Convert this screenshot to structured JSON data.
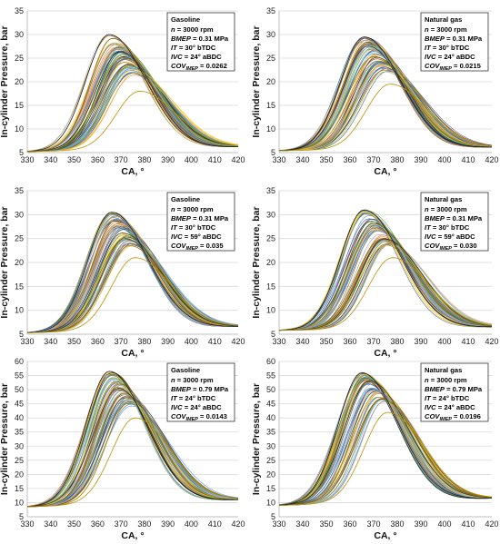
{
  "chart_data": [
    {
      "type": "line",
      "xlabel": "CA, °",
      "ylabel": "In-cylinder Pressure, bar",
      "xlim": [
        330,
        420
      ],
      "ylim": [
        5,
        35
      ],
      "xticks": [
        330,
        340,
        350,
        360,
        370,
        380,
        390,
        400,
        410,
        420
      ],
      "yticks": [
        5,
        10,
        15,
        20,
        25,
        30,
        35
      ],
      "grid": "horizontal",
      "legend": {
        "placement": "top-right",
        "title": "Gasoline",
        "lines": [
          {
            "k": "n",
            "v": " = 3000 rpm"
          },
          {
            "k": "BMEP",
            "v": " = 0.31 MPa"
          },
          {
            "k": "IT",
            "v": " = 30° bTDC"
          },
          {
            "k": "IVC",
            "v": " = 24° aBDC"
          },
          {
            "k": "COV",
            "sub": "IMEP",
            "v": " = 0.0262"
          }
        ]
      },
      "envelope": {
        "start_pressure": 5.2,
        "motored_peak": 18.0,
        "fired_peak_min": 18.0,
        "fired_peak_max": 30.0,
        "peak_ca_min": 365,
        "peak_ca_max": 378,
        "end_pressure": 6.2
      },
      "series_count": 60
    },
    {
      "type": "line",
      "xlabel": "CA, °",
      "ylabel": "In-cylinder Pressure, bar",
      "xlim": [
        330,
        420
      ],
      "ylim": [
        5,
        35
      ],
      "xticks": [
        330,
        340,
        350,
        360,
        370,
        380,
        390,
        400,
        410,
        420
      ],
      "yticks": [
        5,
        10,
        15,
        20,
        25,
        30,
        35
      ],
      "grid": "horizontal",
      "legend": {
        "placement": "top-right",
        "title": "Natural gas",
        "lines": [
          {
            "k": "n",
            "v": " = 3000 rpm"
          },
          {
            "k": "BMEP",
            "v": " = 0.31 MPa"
          },
          {
            "k": "IT",
            "v": " = 30° bTDC"
          },
          {
            "k": "IVC",
            "v": " = 24° aBDC"
          },
          {
            "k": "COV",
            "sub": "IMEP",
            "v": " = 0.0215"
          }
        ]
      },
      "envelope": {
        "start_pressure": 5.4,
        "motored_peak": 19.5,
        "fired_peak_min": 19.5,
        "fired_peak_max": 29.5,
        "peak_ca_min": 366,
        "peak_ca_max": 377,
        "end_pressure": 6.1
      },
      "series_count": 60
    },
    {
      "type": "line",
      "xlabel": "CA, °",
      "ylabel": "In-cylinder Pressure, bar",
      "xlim": [
        330,
        420
      ],
      "ylim": [
        5,
        35
      ],
      "xticks": [
        330,
        340,
        350,
        360,
        370,
        380,
        390,
        400,
        410,
        420
      ],
      "yticks": [
        5,
        10,
        15,
        20,
        25,
        30,
        35
      ],
      "grid": "horizontal",
      "legend": {
        "placement": "top-right",
        "title": "Gasoline",
        "lines": [
          {
            "k": "n",
            "v": " = 3000 rpm"
          },
          {
            "k": "BMEP",
            "v": " = 0.31 MPa"
          },
          {
            "k": "IT",
            "v": " = 30° bTDC"
          },
          {
            "k": "IVC",
            "v": " = 59° aBDC"
          },
          {
            "k": "COV",
            "sub": "IMEP",
            "v": " = 0.035"
          }
        ]
      },
      "envelope": {
        "start_pressure": 5.3,
        "motored_peak": 21.0,
        "fired_peak_min": 21.0,
        "fired_peak_max": 30.5,
        "peak_ca_min": 366,
        "peak_ca_max": 376,
        "end_pressure": 6.6
      },
      "series_count": 60
    },
    {
      "type": "line",
      "xlabel": "CA, °",
      "ylabel": "In-cylinder Pressure, bar",
      "xlim": [
        330,
        420
      ],
      "ylim": [
        5,
        35
      ],
      "xticks": [
        330,
        340,
        350,
        360,
        370,
        380,
        390,
        400,
        410,
        420
      ],
      "yticks": [
        5,
        10,
        15,
        20,
        25,
        30,
        35
      ],
      "grid": "horizontal",
      "legend": {
        "placement": "top-right",
        "title": "Natural gas",
        "lines": [
          {
            "k": "n",
            "v": " = 3000 rpm"
          },
          {
            "k": "BMEP",
            "v": " = 0.31 MPa"
          },
          {
            "k": "IT",
            "v": " = 30° bTDC"
          },
          {
            "k": "IVC",
            "v": " = 59° aBDC"
          },
          {
            "k": "COV",
            "sub": "IMEP",
            "v": " = 0.030"
          }
        ]
      },
      "envelope": {
        "start_pressure": 5.8,
        "motored_peak": 21.0,
        "fired_peak_min": 21.0,
        "fired_peak_max": 31.0,
        "peak_ca_min": 366,
        "peak_ca_max": 378,
        "end_pressure": 6.5
      },
      "series_count": 60
    },
    {
      "type": "line",
      "xlabel": "CA, °",
      "ylabel": "In-cylinder Pressure, bar",
      "xlim": [
        330,
        420
      ],
      "ylim": [
        5,
        60
      ],
      "xticks": [
        330,
        340,
        350,
        360,
        370,
        380,
        390,
        400,
        410,
        420
      ],
      "yticks": [
        5,
        10,
        15,
        20,
        25,
        30,
        35,
        40,
        45,
        50,
        55,
        60
      ],
      "grid": "horizontal",
      "legend": {
        "placement": "top-right",
        "title": "Gasoline",
        "lines": [
          {
            "k": "n",
            "v": " = 3000 rpm"
          },
          {
            "k": "BMEP",
            "v": " = 0.79 MPa"
          },
          {
            "k": "IT",
            "v": " = 24° bTDC"
          },
          {
            "k": "IVC",
            "v": " = 24° aBDC"
          },
          {
            "k": "COV",
            "sub": "IMEP",
            "v": " = 0.0143"
          }
        ]
      },
      "envelope": {
        "start_pressure": 8.5,
        "motored_peak": 40.0,
        "fired_peak_min": 40.0,
        "fired_peak_max": 56.5,
        "peak_ca_min": 365,
        "peak_ca_max": 376,
        "end_pressure": 11.0
      },
      "series_count": 60
    },
    {
      "type": "line",
      "xlabel": "CA, °",
      "ylabel": "In-cylinder Pressure, bar",
      "xlim": [
        330,
        420
      ],
      "ylim": [
        5,
        60
      ],
      "xticks": [
        330,
        340,
        350,
        360,
        370,
        380,
        390,
        400,
        410,
        420
      ],
      "yticks": [
        5,
        10,
        15,
        20,
        25,
        30,
        35,
        40,
        45,
        50,
        55,
        60
      ],
      "grid": "horizontal",
      "legend": {
        "placement": "top-right",
        "title": "Natural gas",
        "lines": [
          {
            "k": "n",
            "v": " = 3000 rpm"
          },
          {
            "k": "BMEP",
            "v": " = 0.79 MPa"
          },
          {
            "k": "IT",
            "v": " = 24° bTDC"
          },
          {
            "k": "IVC",
            "v": " = 24° aBDC"
          },
          {
            "k": "COV",
            "sub": "IMEP",
            "v": " = 0.0196"
          }
        ]
      },
      "envelope": {
        "start_pressure": 9.0,
        "motored_peak": 42.0,
        "fired_peak_min": 42.0,
        "fired_peak_max": 56.0,
        "peak_ca_min": 365,
        "peak_ca_max": 376,
        "end_pressure": 11.5
      },
      "series_count": 60
    }
  ],
  "colors": {
    "grid": "#d9d9d9",
    "axis": "#bfbfbf",
    "palette": [
      "#4472c4",
      "#ed7d31",
      "#a5a5a5",
      "#ffc000",
      "#5b9bd5",
      "#70ad47",
      "#264478",
      "#9e480e",
      "#636363",
      "#997300",
      "#255e91",
      "#43682b",
      "#698ed0",
      "#f1975a",
      "#b7b7b7",
      "#ffcd33",
      "#7cafdd",
      "#8cc168",
      "#1f1f1f",
      "#7f6000"
    ]
  }
}
